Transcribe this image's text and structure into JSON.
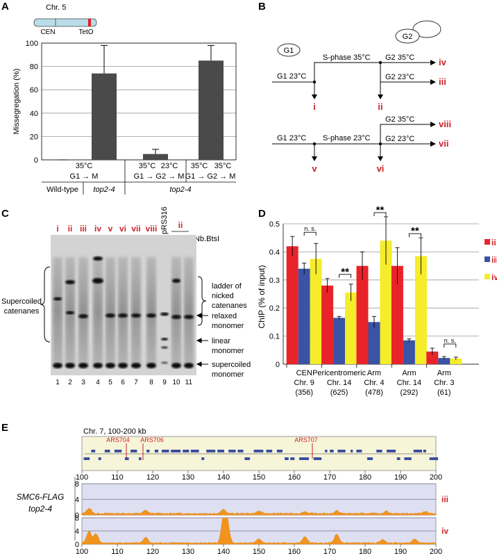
{
  "panels": {
    "A": "A",
    "B": "B",
    "C": "C",
    "D": "D",
    "E": "E"
  },
  "colors": {
    "bar_dark": "#4a4a4a",
    "red": "#d2232a",
    "blue": "#3a53a4",
    "yellow": "#f2ea2a",
    "orange": "#f0941d",
    "roman": "#cc2229"
  },
  "panelA": {
    "chrom_label": "Chr. 5",
    "cen_label": "CEN",
    "teto_label": "TetO",
    "ylabel": "Missegregation (%)",
    "row1": [
      "35°C",
      "35°C",
      "23°C",
      "35°C",
      "35°C"
    ],
    "row2": [
      "G1 → M",
      "G1 → G2 → M",
      "G1 → G2 → M"
    ],
    "row3": [
      "Wild-type",
      "top2-4",
      "top2-4"
    ]
  },
  "panelB": {
    "g1": "G1",
    "g2": "G2",
    "top": {
      "g1temp": "G1 23°C",
      "sphase": "S-phase 35°C",
      "g2a": "G2 35°C",
      "g2b": "G2 23°C",
      "iv": "iv",
      "iii": "iii",
      "i": "i",
      "ii": "ii"
    },
    "bottom": {
      "g1temp": "G1 23°C",
      "sphase": "S-phase 23°C",
      "g2a": "G2 35°C",
      "g2b": "G2 23°C",
      "viii": "viii",
      "vii": "vii",
      "v": "v",
      "vi": "vi"
    }
  },
  "panelC": {
    "lane_headers": [
      "i",
      "ii",
      "iii",
      "iv",
      "v",
      "vi",
      "vii",
      "viii"
    ],
    "prs": "pRS316",
    "ii_right": "ii",
    "minus": "–",
    "plus": "+",
    "enzyme": "Nb.BtsI",
    "lane_numbers": [
      "1",
      "2",
      "3",
      "4",
      "5",
      "6",
      "7",
      "8",
      "9",
      "10",
      "11"
    ],
    "left_label1": "Supercoiled",
    "left_label2": "catenanes",
    "r1": "ladder of",
    "r2": "nicked",
    "r3": "catenanes",
    "r4": "relaxed",
    "r5": "monomer",
    "r6": "linear",
    "r7": "monomer",
    "r8": "supercoiled",
    "r9": "monomer"
  },
  "panelE": {
    "title": "Chr. 7, 100-200 kb",
    "ars": [
      "ARS704",
      "ARS706",
      "ARS707"
    ],
    "side1": "SMC6-FLAG",
    "side2": "top2-4",
    "track_labels": [
      "iii",
      "iv"
    ],
    "ticks": [
      "100",
      "110",
      "120",
      "130",
      "140",
      "150",
      "160",
      "170",
      "180",
      "190",
      "200"
    ],
    "yticks": [
      "0",
      "4",
      "8"
    ]
  },
  "chart_data": [
    {
      "type": "bar",
      "ylabel": "Missegregation (%)",
      "ylim": [
        0,
        100
      ],
      "yticks": [
        0,
        20,
        40,
        60,
        80,
        100
      ],
      "grid": true,
      "categories": [
        "Wild-type 35°C G1→M",
        "top2-4 35°C G1→M",
        "top2-4 35°C/23°C G1→G2→M",
        "top2-4 35°C/35°C G1→G2→M"
      ],
      "values": [
        0,
        74,
        5,
        85
      ],
      "errors": [
        0,
        24,
        4,
        13
      ]
    },
    {
      "type": "bar",
      "ylabel": "ChIP (% of input)",
      "ylim": [
        0,
        0.5
      ],
      "yticks": [
        0,
        0.1,
        0.2,
        0.3,
        0.4,
        0.5
      ],
      "ytick_labels": [
        "0",
        "0.1",
        "0.2",
        "0.3",
        "0.4",
        "0.5"
      ],
      "grid": true,
      "legend_position": "right",
      "categories": [
        {
          "l1": "CEN",
          "l2": "Chr. 9",
          "l3": "(356)"
        },
        {
          "l1": "Pericentromeric",
          "l2": "Chr. 14",
          "l3": "(625)"
        },
        {
          "l1": "Arm",
          "l2": "Chr. 4",
          "l3": "(478)"
        },
        {
          "l1": "Arm",
          "l2": "Chr. 14",
          "l3": "(292)"
        },
        {
          "l1": "Arm",
          "l2": "Chr. 3",
          "l3": "(61)"
        }
      ],
      "series": [
        {
          "name": "ii",
          "color": "#e8242a",
          "values": [
            0.42,
            0.28,
            0.35,
            0.35,
            0.045
          ],
          "errors": [
            0.035,
            0.025,
            0.05,
            0.065,
            0.012
          ]
        },
        {
          "name": "iii",
          "color": "#3a53a4",
          "values": [
            0.34,
            0.165,
            0.15,
            0.085,
            0.022
          ],
          "errors": [
            0.02,
            0.005,
            0.02,
            0.005,
            0.005
          ]
        },
        {
          "name": "iv",
          "color": "#f5ec2a",
          "values": [
            0.375,
            0.255,
            0.44,
            0.385,
            0.02
          ],
          "errors": [
            0.055,
            0.03,
            0.085,
            0.065,
            0.005
          ]
        }
      ],
      "annotations": [
        {
          "group": 0,
          "text": "n. s."
        },
        {
          "group": 1,
          "text": "**"
        },
        {
          "group": 2,
          "text": "**"
        },
        {
          "group": 3,
          "text": "**"
        },
        {
          "group": 4,
          "text": "n. s."
        }
      ]
    },
    {
      "type": "area",
      "xlim": [
        100,
        200
      ],
      "ylim": [
        0,
        8
      ],
      "series": [
        {
          "name": "iii",
          "peaks": [
            [
              102,
              1.4
            ],
            [
              118,
              0.8
            ],
            [
              140,
              1.0
            ],
            [
              150,
              0.6
            ],
            [
              163,
              0.5
            ],
            [
              172,
              0.7
            ],
            [
              186,
              0.6
            ],
            [
              197,
              0.6
            ]
          ]
        },
        {
          "name": "iv",
          "peaks": [
            [
              102,
              3.6
            ],
            [
              104,
              2.8
            ],
            [
              118,
              1.8
            ],
            [
              140,
              7.5
            ],
            [
              141,
              6.5
            ],
            [
              150,
              1.2
            ],
            [
              163,
              2.0
            ],
            [
              172,
              2.8
            ],
            [
              185,
              1.0
            ],
            [
              194,
              1.2
            ]
          ]
        }
      ]
    }
  ]
}
